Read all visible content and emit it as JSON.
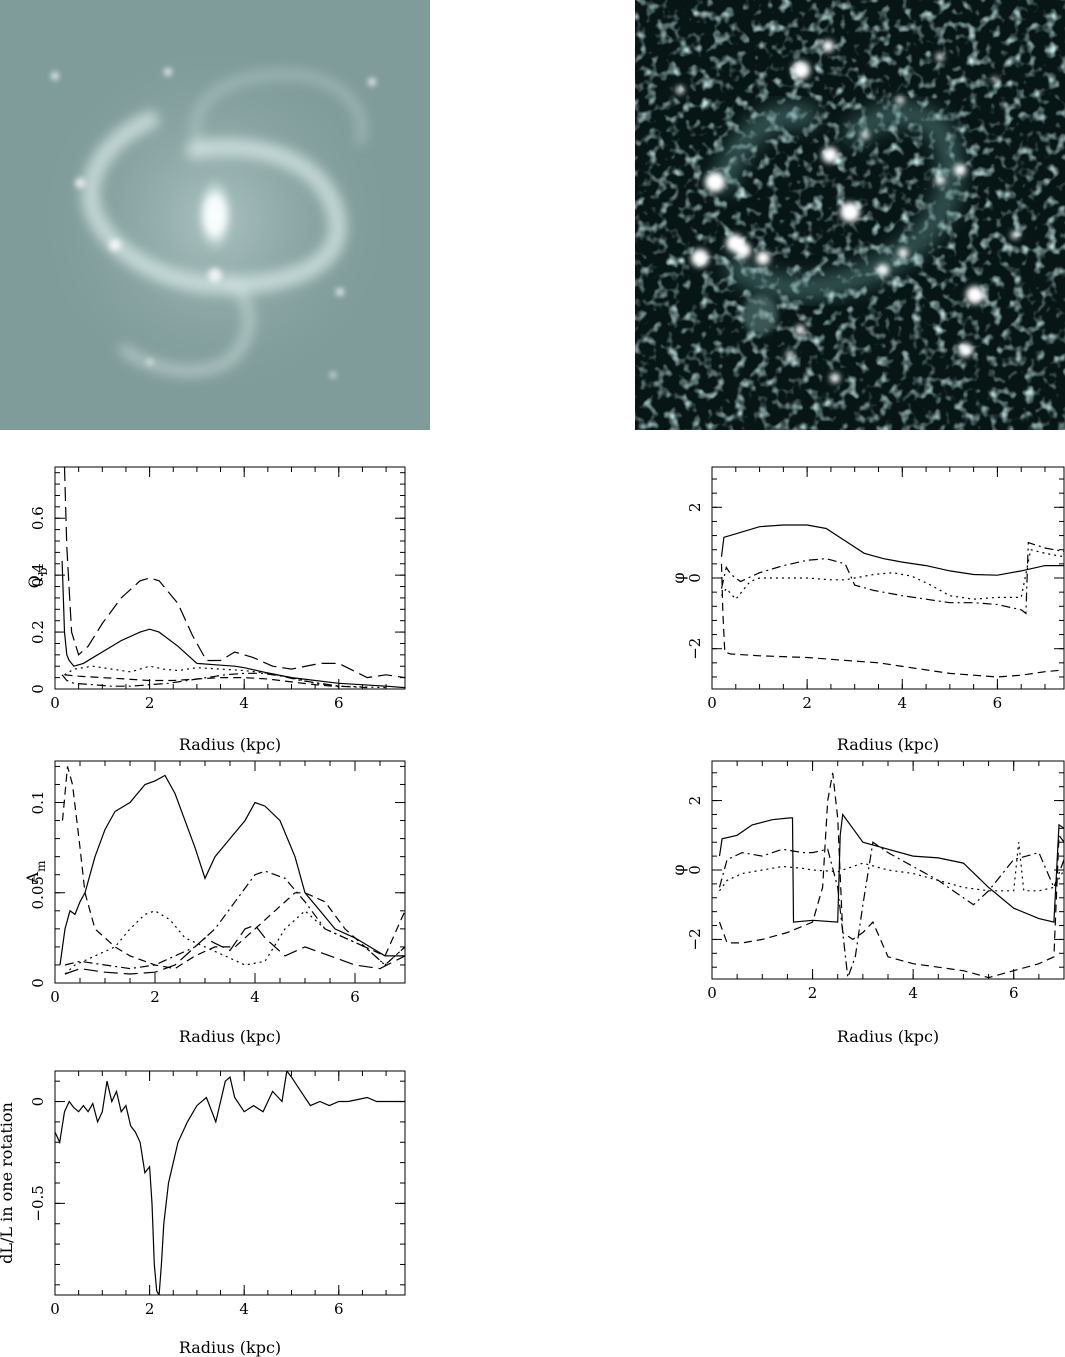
{
  "images": {
    "left": {
      "icon": "galaxy-near-infrared-image",
      "tint": "#7f9b9a"
    },
    "right": {
      "icon": "galaxy-star-forming-image",
      "tint": "#071515"
    }
  },
  "chart_data": [
    {
      "id": "qb",
      "type": "line",
      "xlabel": "Radius (kpc)",
      "ylabel": "Q",
      "ylabel_sub": "b",
      "xlim": [
        0,
        7.4
      ],
      "ylim": [
        0,
        0.78
      ],
      "xticks": [
        0,
        2,
        4,
        6
      ],
      "yticks": [
        0,
        0.2,
        0.4,
        0.6
      ],
      "xtick_labels": [
        "0",
        "2",
        "4",
        "6"
      ],
      "ytick_labels": [
        "0",
        "0.2",
        "0.4",
        "0.6"
      ],
      "series": [
        {
          "style": "solid",
          "x": [
            0.15,
            0.2,
            0.25,
            0.3,
            0.4,
            0.6,
            0.8,
            1.0,
            1.4,
            1.8,
            2.0,
            2.2,
            2.6,
            3.0,
            3.4,
            3.8,
            4.0,
            4.4,
            5.0,
            6.0,
            7.0,
            7.4
          ],
          "y": [
            0.45,
            0.2,
            0.12,
            0.1,
            0.08,
            0.09,
            0.11,
            0.13,
            0.17,
            0.2,
            0.21,
            0.2,
            0.15,
            0.09,
            0.085,
            0.08,
            0.075,
            0.06,
            0.04,
            0.02,
            0.01,
            0.005
          ]
        },
        {
          "style": "long-dash",
          "x": [
            0.2,
            0.25,
            0.35,
            0.5,
            0.7,
            1.0,
            1.4,
            1.8,
            2.0,
            2.2,
            2.6,
            2.9,
            3.2,
            3.5,
            3.8,
            4.2,
            4.6,
            5.0,
            5.6,
            6.0,
            6.6,
            7.0,
            7.4
          ],
          "y": [
            0.78,
            0.5,
            0.2,
            0.12,
            0.15,
            0.23,
            0.32,
            0.38,
            0.39,
            0.38,
            0.3,
            0.19,
            0.1,
            0.1,
            0.13,
            0.11,
            0.08,
            0.07,
            0.09,
            0.09,
            0.04,
            0.05,
            0.04
          ]
        },
        {
          "style": "dotted",
          "x": [
            0.2,
            0.4,
            0.8,
            1.2,
            1.6,
            2.0,
            2.3,
            2.6,
            3.0,
            3.5,
            4.0,
            4.5,
            5.0,
            5.5,
            6.0,
            7.0
          ],
          "y": [
            0.05,
            0.07,
            0.08,
            0.07,
            0.06,
            0.08,
            0.07,
            0.065,
            0.075,
            0.07,
            0.065,
            0.055,
            0.04,
            0.02,
            0.01,
            0.005
          ]
        },
        {
          "style": "dash-dot",
          "x": [
            0.15,
            0.25,
            0.4,
            0.8,
            1.2,
            1.6,
            2.0,
            2.4,
            2.8,
            3.2,
            3.6,
            4.0,
            4.4,
            4.8,
            5.2,
            5.6,
            6.0,
            6.6
          ],
          "y": [
            0.05,
            0.03,
            0.02,
            0.015,
            0.01,
            0.01,
            0.015,
            0.02,
            0.03,
            0.04,
            0.05,
            0.055,
            0.055,
            0.045,
            0.03,
            0.02,
            0.01,
            0.005
          ]
        },
        {
          "style": "dashed",
          "x": [
            0.2,
            0.5,
            1.0,
            1.5,
            2.0,
            2.5,
            3.0,
            3.5,
            4.0,
            4.5,
            5.0,
            5.5,
            6.0
          ],
          "y": [
            0.05,
            0.045,
            0.04,
            0.035,
            0.03,
            0.03,
            0.035,
            0.04,
            0.04,
            0.035,
            0.025,
            0.015,
            0.008
          ]
        }
      ]
    },
    {
      "id": "phi1",
      "type": "line",
      "xlabel": "Radius (kpc)",
      "ylabel": "φ",
      "xlim": [
        0,
        7.4
      ],
      "ylim": [
        -3.14,
        3.14
      ],
      "xticks": [
        0,
        2,
        4,
        6
      ],
      "yticks": [
        -2,
        0,
        2
      ],
      "xtick_labels": [
        "0",
        "2",
        "4",
        "6"
      ],
      "ytick_labels": [
        "−2",
        "0",
        "2"
      ],
      "series": [
        {
          "style": "solid",
          "x": [
            0.2,
            0.25,
            0.5,
            1.0,
            1.5,
            2.0,
            2.4,
            2.8,
            3.2,
            3.6,
            4.0,
            4.5,
            5.0,
            5.5,
            6.0,
            6.5,
            7.0,
            7.4
          ],
          "y": [
            0.6,
            1.15,
            1.25,
            1.45,
            1.5,
            1.5,
            1.4,
            1.05,
            0.7,
            0.55,
            0.45,
            0.35,
            0.2,
            0.1,
            0.08,
            0.2,
            0.35,
            0.35
          ]
        },
        {
          "style": "dashed",
          "x": [
            0.2,
            0.23,
            0.27,
            0.4,
            1.0,
            2.0,
            2.5,
            3.0,
            3.5,
            4.0,
            4.5,
            5.0,
            5.5,
            6.0,
            6.5,
            7.0,
            7.4
          ],
          "y": [
            0.4,
            -1.0,
            -2.1,
            -2.15,
            -2.2,
            -2.25,
            -2.3,
            -2.35,
            -2.4,
            -2.5,
            -2.6,
            -2.7,
            -2.75,
            -2.8,
            -2.75,
            -2.65,
            -2.6
          ]
        },
        {
          "style": "dash-dot",
          "x": [
            0.2,
            0.3,
            0.4,
            0.6,
            1.0,
            1.5,
            2.0,
            2.4,
            2.8,
            3.0,
            3.4,
            4.0,
            4.5,
            5.0,
            5.5,
            6.0,
            6.5,
            6.6,
            6.65,
            7.0,
            7.4
          ],
          "y": [
            -0.3,
            0.3,
            0.1,
            -0.1,
            0.15,
            0.35,
            0.5,
            0.55,
            0.4,
            -0.2,
            -0.35,
            -0.5,
            -0.6,
            -0.7,
            -0.7,
            -0.75,
            -0.9,
            -1.0,
            1.0,
            0.85,
            0.75
          ]
        },
        {
          "style": "dotted",
          "x": [
            0.2,
            0.3,
            0.5,
            0.8,
            1.0,
            1.5,
            2.0,
            2.5,
            2.8,
            3.0,
            3.4,
            3.8,
            4.2,
            4.6,
            5.0,
            5.5,
            6.0,
            6.5,
            6.7,
            7.0,
            7.4
          ],
          "y": [
            -0.5,
            -0.3,
            -0.6,
            -0.1,
            0.0,
            0.0,
            0.0,
            -0.05,
            -0.05,
            0.0,
            0.1,
            0.15,
            0.05,
            -0.2,
            -0.5,
            -0.6,
            -0.55,
            -0.55,
            0.8,
            0.7,
            0.6
          ]
        }
      ]
    },
    {
      "id": "am",
      "type": "line",
      "xlabel": "Radius (kpc)",
      "ylabel": "A",
      "ylabel_sub": "m",
      "xlim": [
        0,
        7.0
      ],
      "ylim": [
        0,
        0.123
      ],
      "xticks": [
        0,
        2,
        4,
        6
      ],
      "yticks": [
        0,
        0.05,
        0.1
      ],
      "xtick_labels": [
        "0",
        "2",
        "4",
        "6"
      ],
      "ytick_labels": [
        "0",
        "0.05",
        "0.1"
      ],
      "series": [
        {
          "style": "solid",
          "x": [
            0.1,
            0.2,
            0.3,
            0.4,
            0.5,
            0.6,
            0.8,
            1.0,
            1.2,
            1.5,
            1.8,
            2.0,
            2.2,
            2.4,
            2.6,
            2.8,
            3.0,
            3.2,
            3.5,
            3.8,
            4.0,
            4.2,
            4.5,
            4.8,
            5.0,
            5.3,
            5.6,
            6.0,
            6.3,
            6.6,
            7.0
          ],
          "y": [
            0.01,
            0.03,
            0.04,
            0.038,
            0.045,
            0.05,
            0.07,
            0.085,
            0.095,
            0.1,
            0.11,
            0.112,
            0.115,
            0.105,
            0.09,
            0.075,
            0.058,
            0.07,
            0.08,
            0.09,
            0.1,
            0.098,
            0.09,
            0.07,
            0.05,
            0.04,
            0.03,
            0.025,
            0.02,
            0.015,
            0.015
          ]
        },
        {
          "style": "dashed",
          "x": [
            0.15,
            0.25,
            0.35,
            0.5,
            0.6,
            0.8,
            1.0,
            1.2,
            1.5,
            1.8,
            2.0,
            2.4,
            2.8,
            3.2,
            3.6,
            4.0,
            4.4,
            4.8,
            5.0,
            5.4,
            5.8,
            6.2,
            6.6,
            7.0
          ],
          "y": [
            0.09,
            0.12,
            0.11,
            0.075,
            0.05,
            0.03,
            0.025,
            0.02,
            0.015,
            0.012,
            0.01,
            0.008,
            0.015,
            0.02,
            0.02,
            0.03,
            0.04,
            0.05,
            0.05,
            0.045,
            0.03,
            0.02,
            0.015,
            0.04
          ]
        },
        {
          "style": "dotted",
          "x": [
            0.2,
            0.4,
            0.8,
            1.2,
            1.5,
            1.8,
            2.0,
            2.3,
            2.6,
            3.0,
            3.4,
            3.8,
            4.2,
            4.6,
            5.0,
            5.4,
            5.8,
            6.2,
            6.6,
            7.0
          ],
          "y": [
            0.005,
            0.01,
            0.015,
            0.02,
            0.03,
            0.038,
            0.04,
            0.035,
            0.025,
            0.02,
            0.015,
            0.01,
            0.012,
            0.03,
            0.04,
            0.03,
            0.025,
            0.02,
            0.01,
            0.02
          ]
        },
        {
          "style": "dash-dot",
          "x": [
            0.2,
            0.5,
            1.0,
            1.5,
            2.0,
            2.4,
            2.8,
            3.2,
            3.6,
            4.0,
            4.2,
            4.6,
            5.0,
            5.4,
            5.8,
            6.2,
            6.6,
            7.0
          ],
          "y": [
            0.01,
            0.012,
            0.01,
            0.008,
            0.01,
            0.015,
            0.02,
            0.03,
            0.045,
            0.06,
            0.062,
            0.058,
            0.045,
            0.03,
            0.025,
            0.02,
            0.01,
            0.02
          ]
        },
        {
          "style": "long-dash",
          "x": [
            0.2,
            0.5,
            1.0,
            1.5,
            2.0,
            2.4,
            2.8,
            3.0,
            3.2,
            3.5,
            3.8,
            4.0,
            4.2,
            4.6,
            5.0,
            5.5,
            6.0,
            6.5,
            7.0
          ],
          "y": [
            0.005,
            0.008,
            0.006,
            0.005,
            0.006,
            0.01,
            0.02,
            0.025,
            0.022,
            0.018,
            0.03,
            0.032,
            0.025,
            0.015,
            0.02,
            0.015,
            0.01,
            0.008,
            0.015
          ]
        }
      ]
    },
    {
      "id": "phi2",
      "type": "line",
      "xlabel": "Radius (kpc)",
      "ylabel": "φ",
      "xlim": [
        0,
        7.0
      ],
      "ylim": [
        -3.14,
        3.14
      ],
      "xticks": [
        0,
        2,
        4,
        6
      ],
      "yticks": [
        -2,
        0,
        2
      ],
      "xtick_labels": [
        "0",
        "2",
        "4",
        "6"
      ],
      "ytick_labels": [
        "−2",
        "0",
        "2"
      ],
      "series": [
        {
          "style": "solid",
          "x": [
            0.15,
            0.2,
            0.5,
            0.8,
            1.2,
            1.55,
            1.6,
            1.62,
            2.0,
            2.5,
            2.55,
            2.6,
            2.8,
            3.0,
            3.5,
            4.0,
            4.5,
            5.0,
            5.5,
            6.0,
            6.5,
            6.8,
            6.9,
            7.0
          ],
          "y": [
            0.4,
            0.9,
            1.0,
            1.3,
            1.45,
            1.5,
            1.5,
            -1.5,
            -1.45,
            -1.5,
            1.0,
            1.6,
            1.2,
            0.8,
            0.6,
            0.4,
            0.35,
            0.2,
            -0.5,
            -1.1,
            -1.4,
            -1.5,
            1.3,
            1.2
          ]
        },
        {
          "style": "dashed",
          "x": [
            0.15,
            0.3,
            0.6,
            1.0,
            1.5,
            2.0,
            2.2,
            2.3,
            2.4,
            2.5,
            2.6,
            2.8,
            3.0,
            3.2,
            3.5,
            4.0,
            4.5,
            5.0,
            5.5,
            6.0,
            6.5,
            6.8,
            6.9,
            7.0
          ],
          "y": [
            -1.5,
            -2.1,
            -2.1,
            -2.0,
            -1.8,
            -1.5,
            -0.5,
            2.0,
            2.8,
            1.5,
            -1.8,
            -2.0,
            -1.8,
            -1.5,
            -2.5,
            -2.7,
            -2.8,
            -2.9,
            -3.1,
            -2.9,
            -2.7,
            -2.5,
            1.0,
            0.8
          ]
        },
        {
          "style": "dash-dot",
          "x": [
            0.15,
            0.3,
            0.6,
            1.0,
            1.4,
            1.8,
            2.0,
            2.3,
            2.5,
            2.7,
            2.85,
            3.0,
            3.2,
            3.5,
            4.0,
            4.5,
            5.0,
            5.2,
            5.5,
            6.0,
            6.5,
            6.8,
            7.0
          ],
          "y": [
            -0.5,
            0.3,
            0.5,
            0.4,
            0.6,
            0.5,
            0.5,
            0.6,
            -0.5,
            -3.1,
            -2.5,
            -1.0,
            0.8,
            0.5,
            0.1,
            -0.3,
            -0.8,
            -1.0,
            -0.6,
            0.3,
            0.5,
            -0.5,
            0.3
          ]
        },
        {
          "style": "dotted",
          "x": [
            0.15,
            0.3,
            0.6,
            1.0,
            1.4,
            1.8,
            2.0,
            2.5,
            3.0,
            3.5,
            4.0,
            4.5,
            5.0,
            5.5,
            6.0,
            6.1,
            6.2,
            6.5,
            6.8,
            7.0
          ],
          "y": [
            -0.6,
            -0.3,
            -0.1,
            0.0,
            0.1,
            0.05,
            0.0,
            -0.05,
            0.2,
            0.0,
            -0.1,
            -0.3,
            -0.5,
            -0.6,
            -0.6,
            0.8,
            -0.6,
            -0.6,
            -0.5,
            0.0
          ]
        }
      ]
    },
    {
      "id": "dl",
      "type": "line",
      "xlabel": "Radius (kpc)",
      "ylabel": "dL/L in one rotation",
      "xlim": [
        0,
        7.4
      ],
      "ylim": [
        -0.95,
        0.15
      ],
      "xticks": [
        0,
        2,
        4,
        6
      ],
      "yticks": [
        -0.5,
        0
      ],
      "xtick_labels": [
        "0",
        "2",
        "4",
        "6"
      ],
      "ytick_labels": [
        "−0.5",
        "0"
      ],
      "series": [
        {
          "style": "solid",
          "x": [
            0.0,
            0.1,
            0.2,
            0.3,
            0.4,
            0.5,
            0.6,
            0.7,
            0.8,
            0.9,
            1.0,
            1.1,
            1.2,
            1.3,
            1.4,
            1.5,
            1.6,
            1.7,
            1.8,
            1.9,
            2.0,
            2.05,
            2.1,
            2.15,
            2.2,
            2.25,
            2.3,
            2.4,
            2.6,
            2.8,
            3.0,
            3.2,
            3.4,
            3.6,
            3.7,
            3.8,
            4.0,
            4.2,
            4.4,
            4.6,
            4.8,
            4.9,
            5.0,
            5.2,
            5.4,
            5.6,
            5.8,
            6.0,
            6.2,
            6.4,
            6.6,
            6.8,
            7.0,
            7.4
          ],
          "y": [
            -0.15,
            -0.2,
            -0.05,
            0.0,
            -0.03,
            -0.05,
            -0.02,
            -0.05,
            -0.01,
            -0.1,
            -0.05,
            0.1,
            0.0,
            0.05,
            -0.05,
            -0.02,
            -0.12,
            -0.15,
            -0.2,
            -0.35,
            -0.32,
            -0.5,
            -0.8,
            -0.93,
            -0.95,
            -0.8,
            -0.6,
            -0.4,
            -0.2,
            -0.1,
            -0.02,
            0.02,
            -0.1,
            0.1,
            0.12,
            0.02,
            -0.05,
            -0.02,
            -0.05,
            0.05,
            0.0,
            0.15,
            0.12,
            0.05,
            -0.02,
            0.0,
            -0.02,
            0.0,
            0.0,
            0.01,
            0.02,
            0.0,
            0.0,
            0.0
          ]
        }
      ]
    }
  ]
}
